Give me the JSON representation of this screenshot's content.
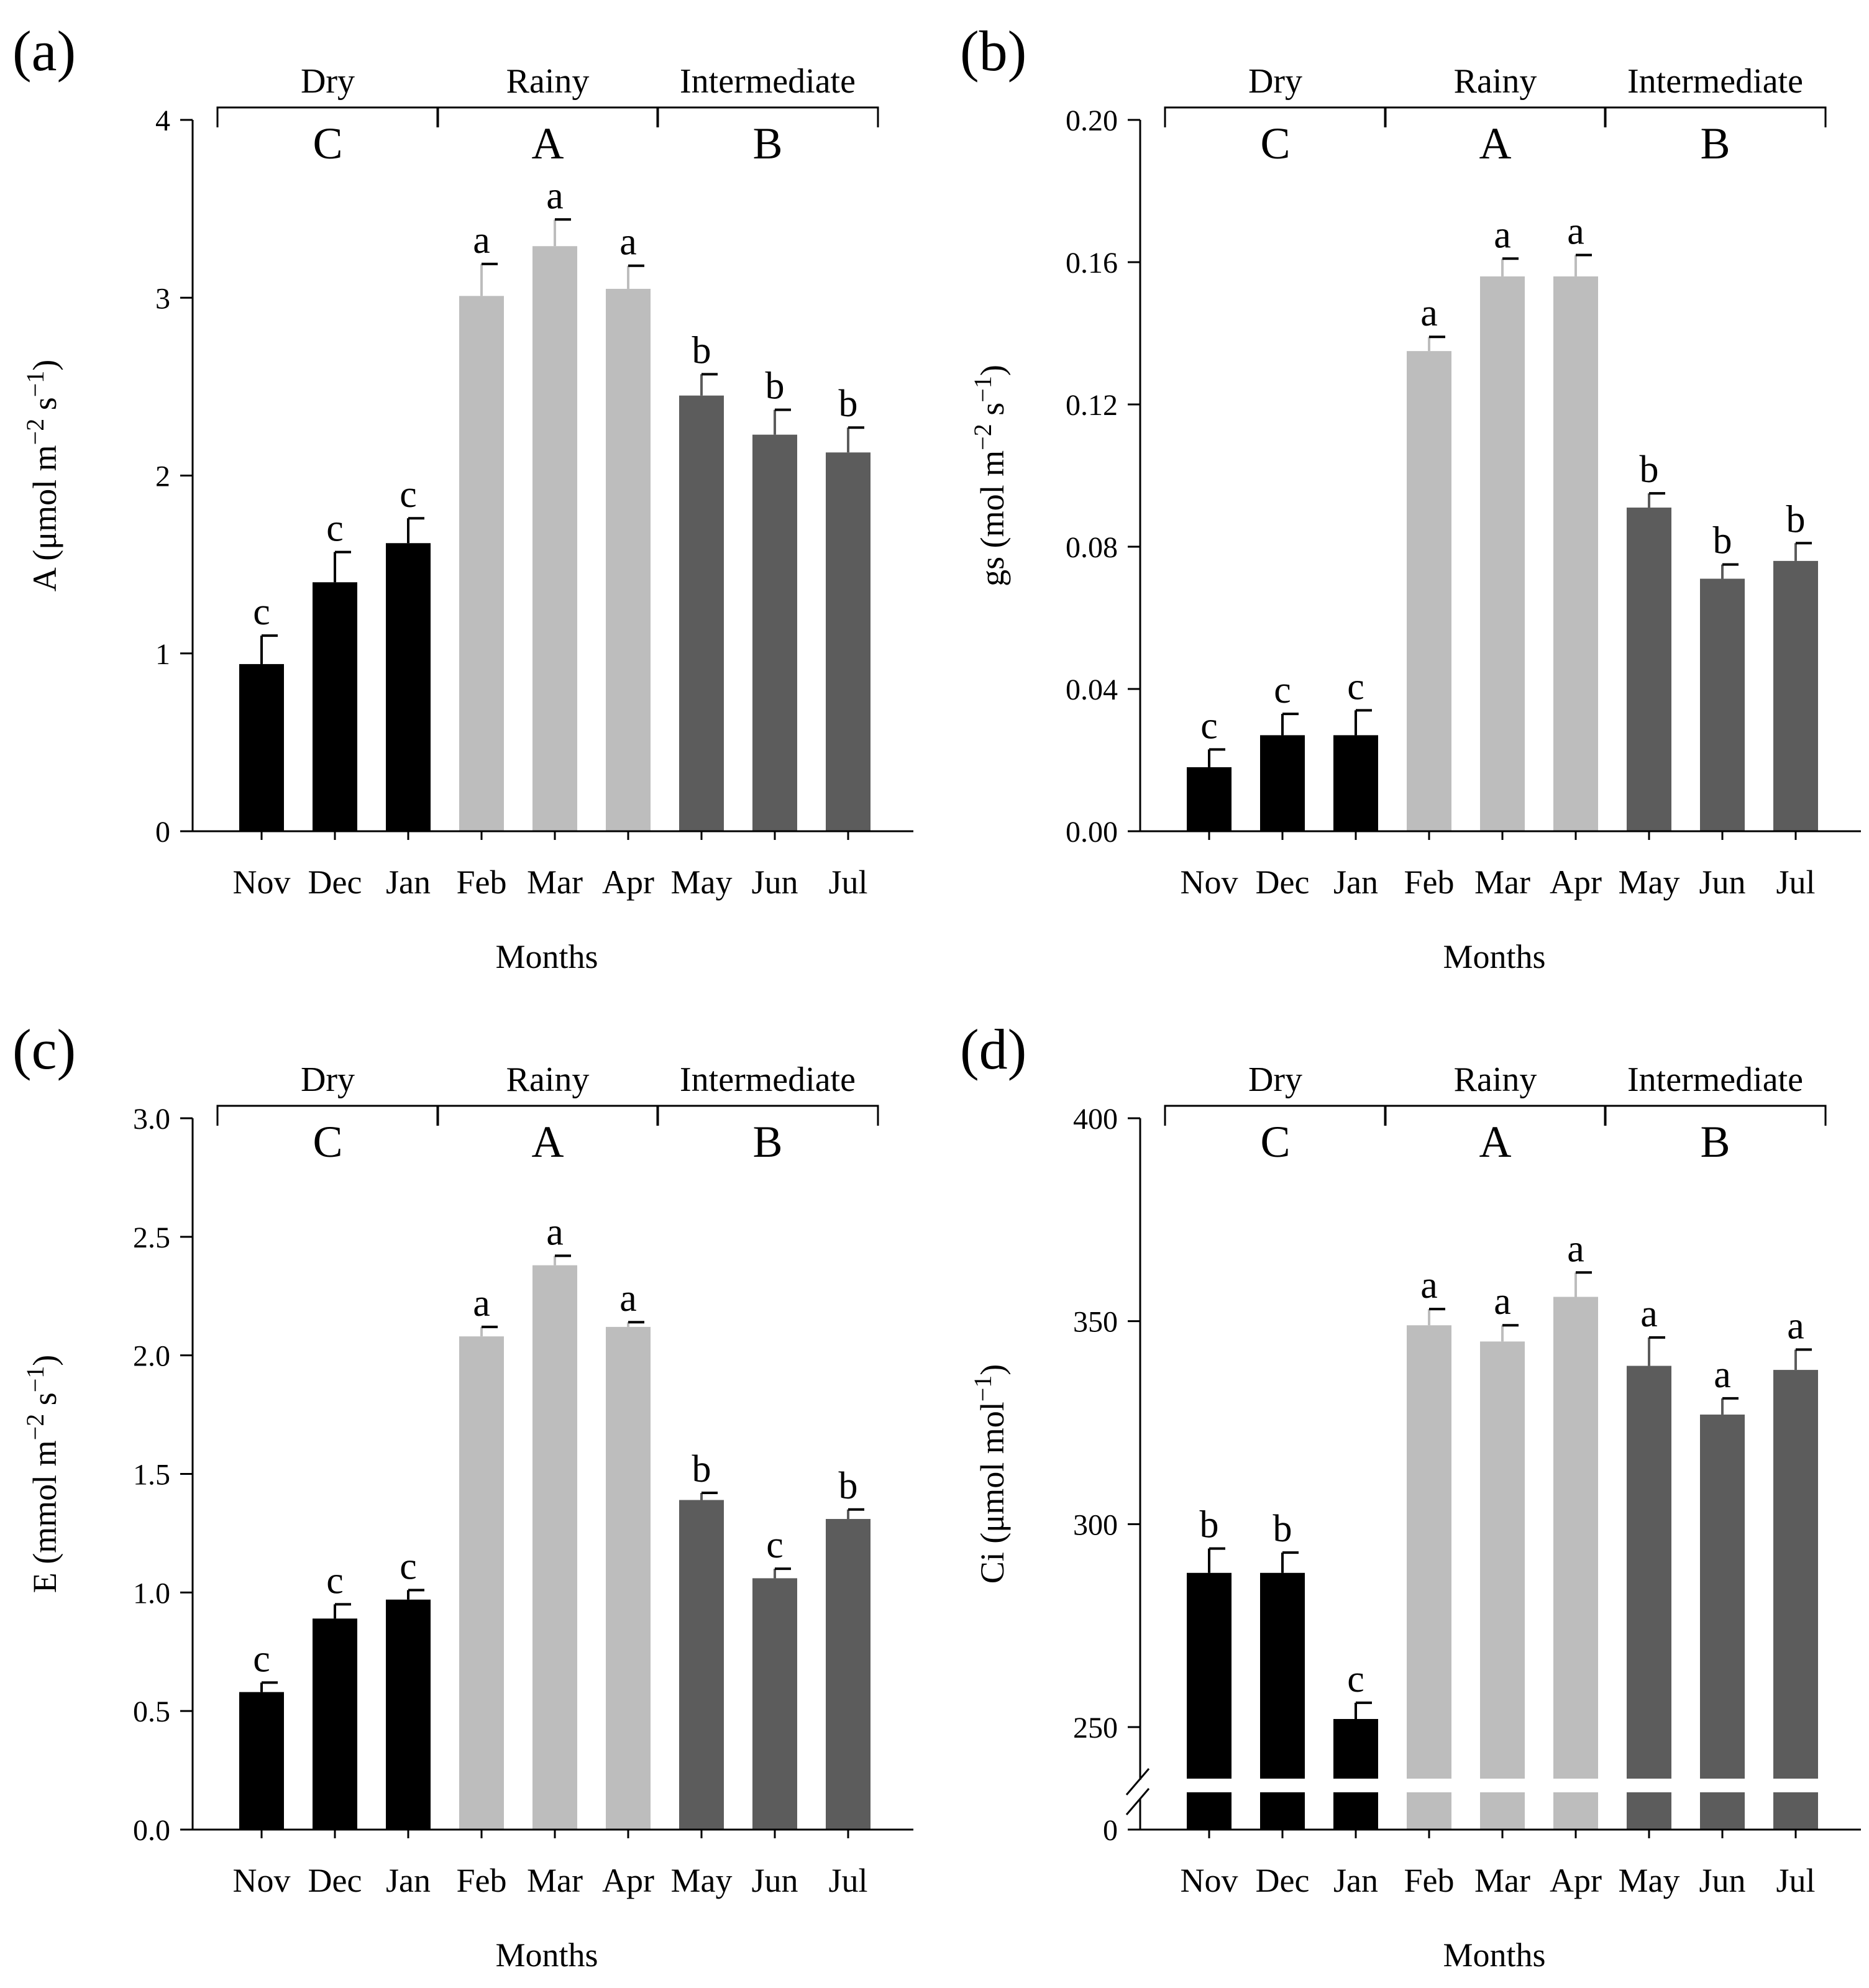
{
  "figure": {
    "colors": {
      "Dry": "#000000",
      "Rainy": "#bdbdbd",
      "Intermediate": "#5c5c5c",
      "axis": "#000000"
    },
    "season_groups": [
      {
        "name": "Dry",
        "letter": "C",
        "months": [
          "Nov",
          "Dec",
          "Jan"
        ]
      },
      {
        "name": "Rainy",
        "letter": "A",
        "months": [
          "Feb",
          "Mar",
          "Apr"
        ]
      },
      {
        "name": "Intermediate",
        "letter": "B",
        "months": [
          "May",
          "Jun",
          "Jul"
        ]
      }
    ]
  },
  "chart_data": [
    {
      "type": "bar",
      "panel_label": "(a)",
      "categories": [
        "Nov",
        "Dec",
        "Jan",
        "Feb",
        "Mar",
        "Apr",
        "May",
        "Jun",
        "Jul"
      ],
      "values": [
        0.94,
        1.4,
        1.62,
        3.01,
        3.29,
        3.05,
        2.45,
        2.23,
        2.13
      ],
      "errors": [
        0.16,
        0.17,
        0.14,
        0.18,
        0.15,
        0.13,
        0.12,
        0.14,
        0.14
      ],
      "letters": [
        "c",
        "c",
        "c",
        "a",
        "a",
        "a",
        "b",
        "b",
        "b"
      ],
      "xlabel": "Months",
      "ylabel": {
        "base": "A (μmol m",
        "sup1": "−2",
        "mid": " s",
        "sup2": "−1",
        "end": ")"
      },
      "ylim": [
        0,
        4
      ],
      "yticks": [
        0,
        1,
        2,
        3,
        4
      ],
      "yticklabels": [
        "0",
        "1",
        "2",
        "3",
        "4"
      ]
    },
    {
      "type": "bar",
      "panel_label": "(b)",
      "categories": [
        "Nov",
        "Dec",
        "Jan",
        "Feb",
        "Mar",
        "Apr",
        "May",
        "Jun",
        "Jul"
      ],
      "values": [
        0.018,
        0.027,
        0.027,
        0.135,
        0.156,
        0.156,
        0.091,
        0.071,
        0.076
      ],
      "errors": [
        0.005,
        0.006,
        0.007,
        0.004,
        0.005,
        0.006,
        0.004,
        0.004,
        0.005
      ],
      "letters": [
        "c",
        "c",
        "c",
        "a",
        "a",
        "a",
        "b",
        "b",
        "b"
      ],
      "xlabel": "Months",
      "ylabel": {
        "base": "gs (mol m",
        "sup1": "−2",
        "mid": " s",
        "sup2": "−1",
        "end": ")"
      },
      "ylim": [
        0,
        0.2
      ],
      "yticks": [
        0,
        0.04,
        0.08,
        0.12,
        0.16,
        0.2
      ],
      "yticklabels": [
        "0.00",
        "0.04",
        "0.08",
        "0.12",
        "0.16",
        "0.20"
      ]
    },
    {
      "type": "bar",
      "panel_label": "(c)",
      "categories": [
        "Nov",
        "Dec",
        "Jan",
        "Feb",
        "Mar",
        "Apr",
        "May",
        "Jun",
        "Jul"
      ],
      "values": [
        0.58,
        0.89,
        0.97,
        2.08,
        2.38,
        2.12,
        1.39,
        1.06,
        1.31
      ],
      "errors": [
        0.04,
        0.06,
        0.04,
        0.04,
        0.04,
        0.02,
        0.03,
        0.04,
        0.04
      ],
      "letters": [
        "c",
        "c",
        "c",
        "a",
        "a",
        "a",
        "b",
        "c",
        "b"
      ],
      "xlabel": "Months",
      "ylabel": {
        "base": "E (mmol m",
        "sup1": "−2",
        "mid": " s",
        "sup2": "−1",
        "end": ")"
      },
      "ylim": [
        0,
        3
      ],
      "yticks": [
        0,
        0.5,
        1,
        1.5,
        2,
        2.5,
        3
      ],
      "yticklabels": [
        "0.0",
        "0.5",
        "1.0",
        "1.5",
        "2.0",
        "2.5",
        "3.0"
      ]
    },
    {
      "type": "bar",
      "panel_label": "(d)",
      "categories": [
        "Nov",
        "Dec",
        "Jan",
        "Feb",
        "Mar",
        "Apr",
        "May",
        "Jun",
        "Jul"
      ],
      "values": [
        288,
        288,
        252,
        349,
        345,
        356,
        339,
        327,
        338
      ],
      "errors": [
        6,
        5,
        4,
        4,
        4,
        6,
        7,
        4,
        5
      ],
      "letters": [
        "b",
        "b",
        "c",
        "a",
        "a",
        "a",
        "a",
        "a",
        "a"
      ],
      "xlabel": "Months",
      "ylabel": {
        "base": "Ci (μmol mol",
        "sup1": "−1",
        "mid": "",
        "sup2": "",
        "end": ")"
      },
      "ylim": [
        0,
        400
      ],
      "axis_break": [
        0,
        237
      ],
      "visible_range": [
        237,
        400
      ],
      "yticks": [
        0,
        250,
        300,
        350,
        400
      ],
      "yticklabels": [
        "0",
        "250",
        "300",
        "350",
        "400"
      ]
    }
  ]
}
